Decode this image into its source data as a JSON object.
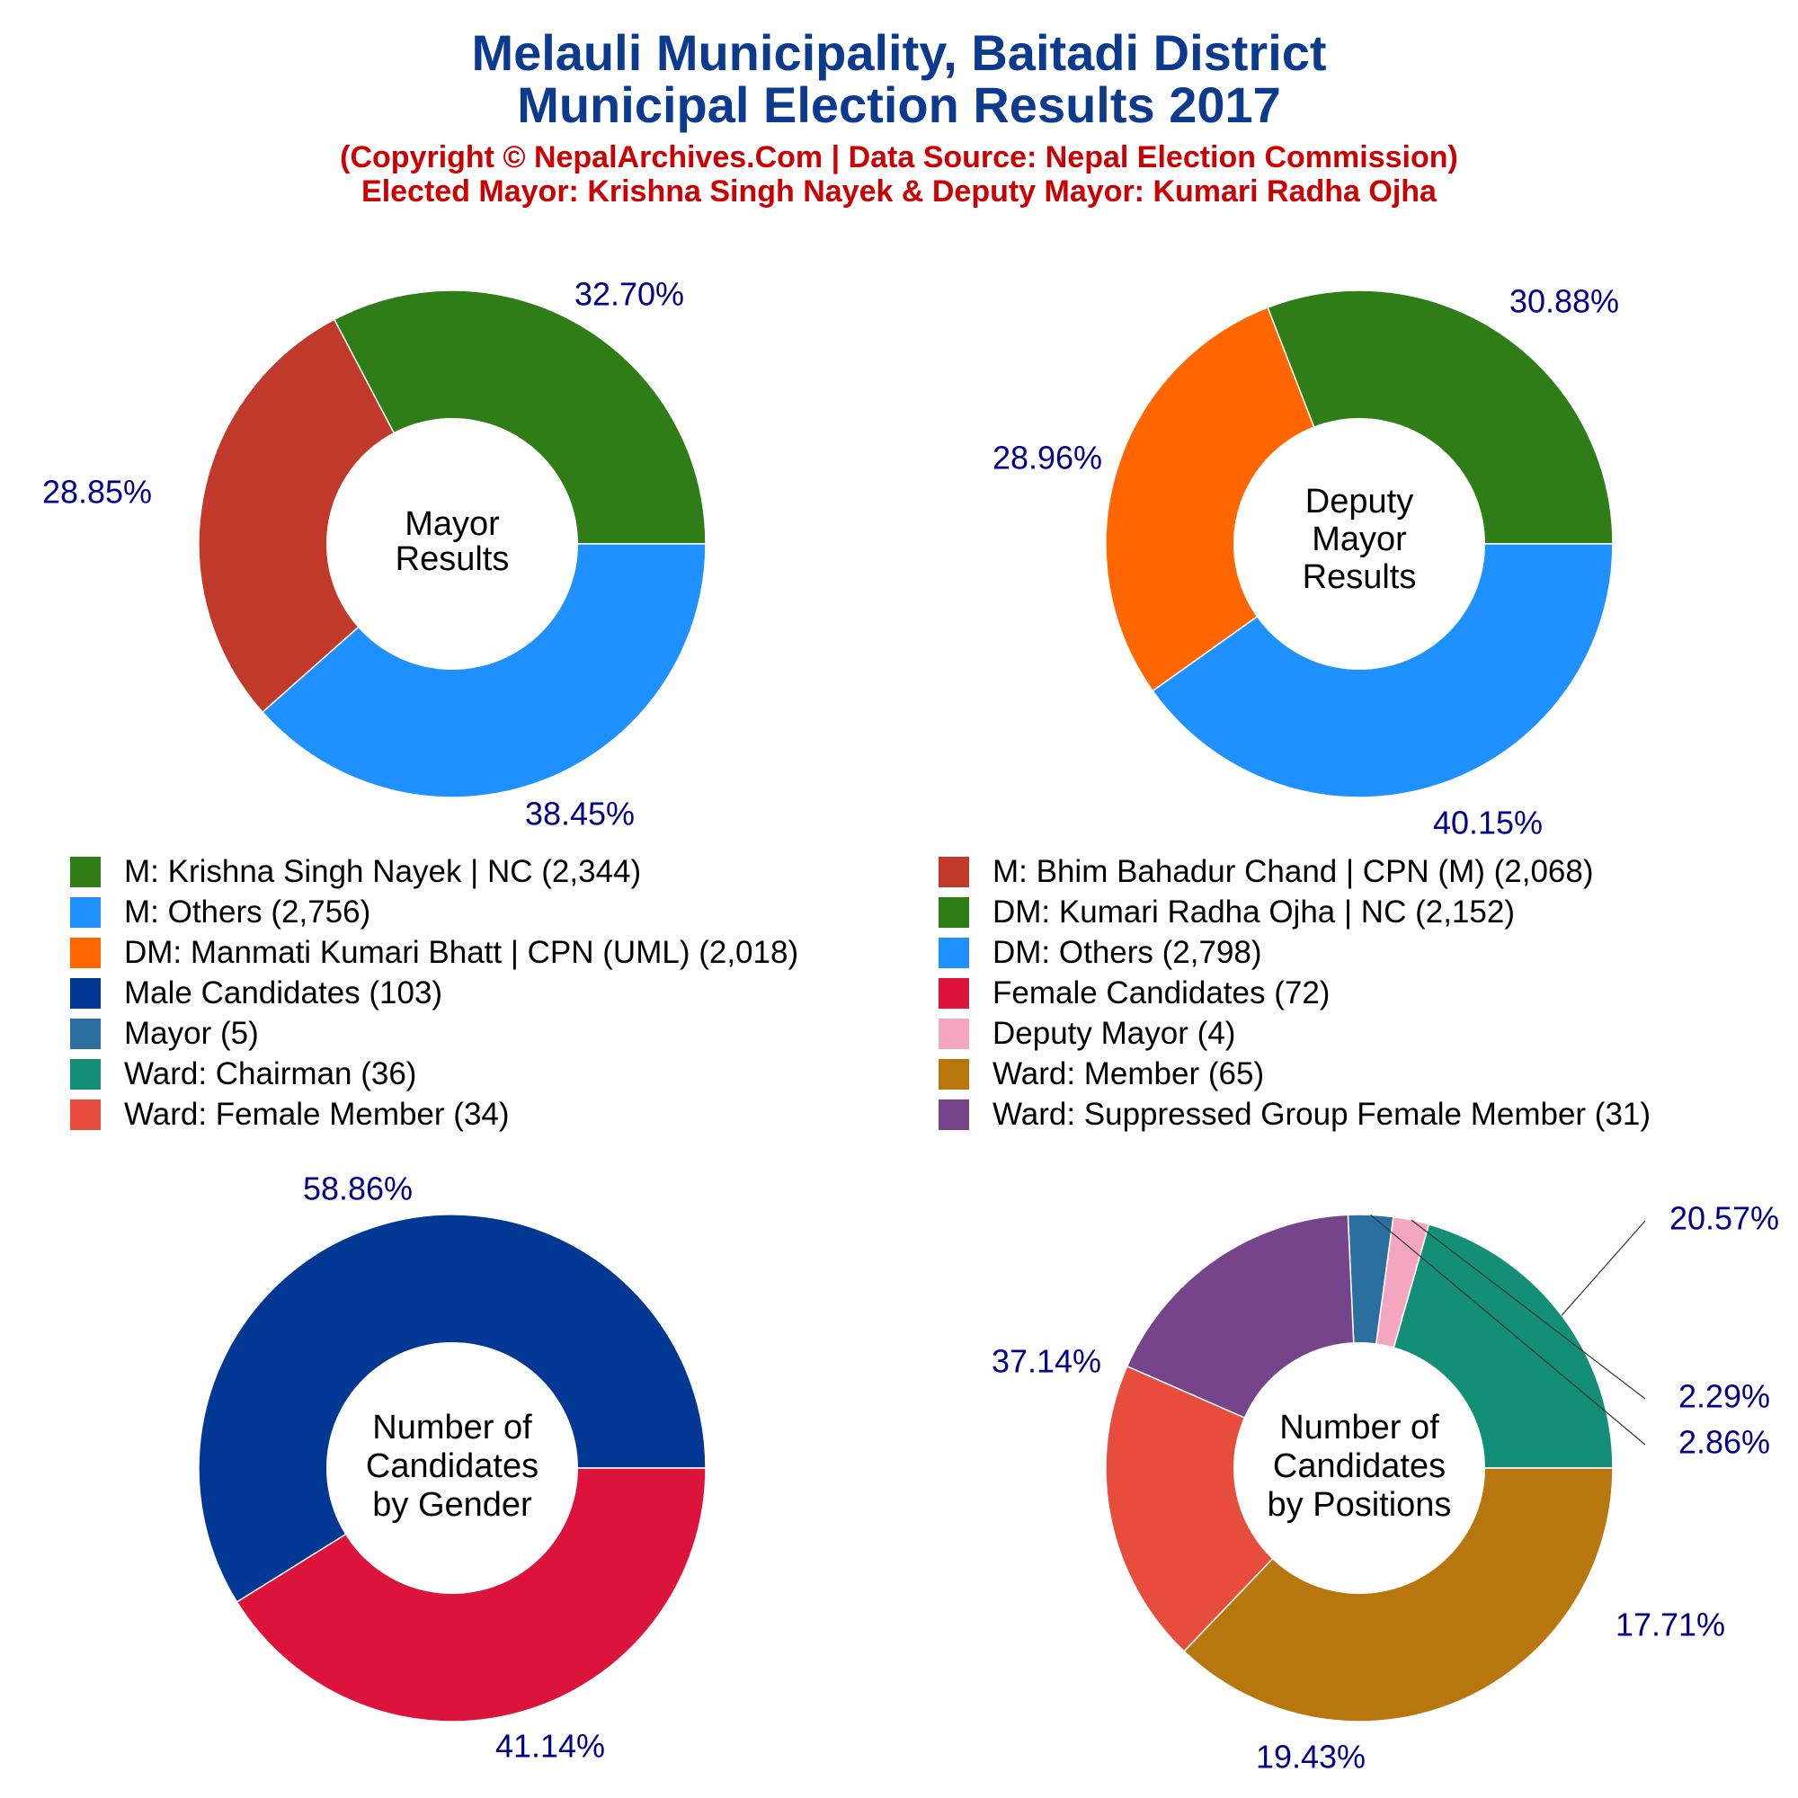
{
  "header": {
    "title_line1": "Melauli Municipality, Baitadi District",
    "title_line2": "Municipal Election Results 2017",
    "subtitle_line1": "(Copyright © NepalArchives.Com | Data Source: Nepal Election Commission)",
    "subtitle_line2": "Elected Mayor: Krishna Singh Nayek & Deputy Mayor: Kumari Radha Ojha"
  },
  "colors": {
    "title": "#0b3a8f",
    "subtitle": "#cc0000",
    "percent_label": "#00008b"
  },
  "legend": [
    {
      "label": "M: Krishna Singh Nayek | NC (2,344)",
      "color": "#2e7d17"
    },
    {
      "label": "M: Bhim Bahadur Chand | CPN (M) (2,068)",
      "color": "#c0392b"
    },
    {
      "label": "M: Others (2,756)",
      "color": "#1e90ff"
    },
    {
      "label": "DM: Kumari Radha Ojha | NC (2,152)",
      "color": "#2e7d17"
    },
    {
      "label": "DM: Manmati Kumari Bhatt | CPN (UML) (2,018)",
      "color": "#ff6600"
    },
    {
      "label": "DM: Others (2,798)",
      "color": "#1e90ff"
    },
    {
      "label": "Male Candidates (103)",
      "color": "#003893"
    },
    {
      "label": "Female Candidates (72)",
      "color": "#dc143c"
    },
    {
      "label": "Mayor (5)",
      "color": "#2a6fa0"
    },
    {
      "label": "Deputy Mayor (4)",
      "color": "#f4a6c0"
    },
    {
      "label": "Ward: Chairman (36)",
      "color": "#148f77"
    },
    {
      "label": "Ward: Member (65)",
      "color": "#b8770e"
    },
    {
      "label": "Ward: Female Member (34)",
      "color": "#e74c3c"
    },
    {
      "label": "Ward: Suppressed Group Female Member (31)",
      "color": "#76448a"
    }
  ],
  "chart_data": [
    {
      "type": "pie",
      "center_label": [
        "Mayor",
        "Results"
      ],
      "slices": [
        {
          "name": "M: Krishna Singh Nayek | NC",
          "value": 2344,
          "percent_label": "32.70%",
          "color": "#2e7d17"
        },
        {
          "name": "M: Bhim Bahadur Chand | CPN (M)",
          "value": 2068,
          "percent_label": "28.85%",
          "color": "#c0392b"
        },
        {
          "name": "M: Others",
          "value": 2756,
          "percent_label": "38.45%",
          "color": "#1e90ff"
        }
      ]
    },
    {
      "type": "pie",
      "center_label": [
        "Deputy",
        "Mayor",
        "Results"
      ],
      "slices": [
        {
          "name": "DM: Kumari Radha Ojha | NC",
          "value": 2152,
          "percent_label": "30.88%",
          "color": "#2e7d17"
        },
        {
          "name": "DM: Manmati Kumari Bhatt | CPN (UML)",
          "value": 2018,
          "percent_label": "28.96%",
          "color": "#ff6600"
        },
        {
          "name": "DM: Others",
          "value": 2798,
          "percent_label": "40.15%",
          "color": "#1e90ff"
        }
      ]
    },
    {
      "type": "pie",
      "center_label": [
        "Number of",
        "Candidates",
        "by Gender"
      ],
      "slices": [
        {
          "name": "Male Candidates",
          "value": 103,
          "percent_label": "58.86%",
          "color": "#003893"
        },
        {
          "name": "Female Candidates",
          "value": 72,
          "percent_label": "41.14%",
          "color": "#dc143c"
        }
      ]
    },
    {
      "type": "pie",
      "center_label": [
        "Number of",
        "Candidates",
        "by Positions"
      ],
      "slices": [
        {
          "name": "Ward: Chairman",
          "value": 36,
          "percent_label": "20.57%",
          "color": "#148f77"
        },
        {
          "name": "Deputy Mayor",
          "value": 4,
          "percent_label": "2.29%",
          "color": "#f4a6c0"
        },
        {
          "name": "Mayor",
          "value": 5,
          "percent_label": "2.86%",
          "color": "#2a6fa0"
        },
        {
          "name": "Ward: Suppressed Group Female Member",
          "value": 31,
          "percent_label": "17.71%",
          "color": "#76448a"
        },
        {
          "name": "Ward: Female Member",
          "value": 34,
          "percent_label": "19.43%",
          "color": "#e74c3c"
        },
        {
          "name": "Ward: Member",
          "value": 65,
          "percent_label": "37.14%",
          "color": "#b8770e"
        }
      ]
    }
  ]
}
